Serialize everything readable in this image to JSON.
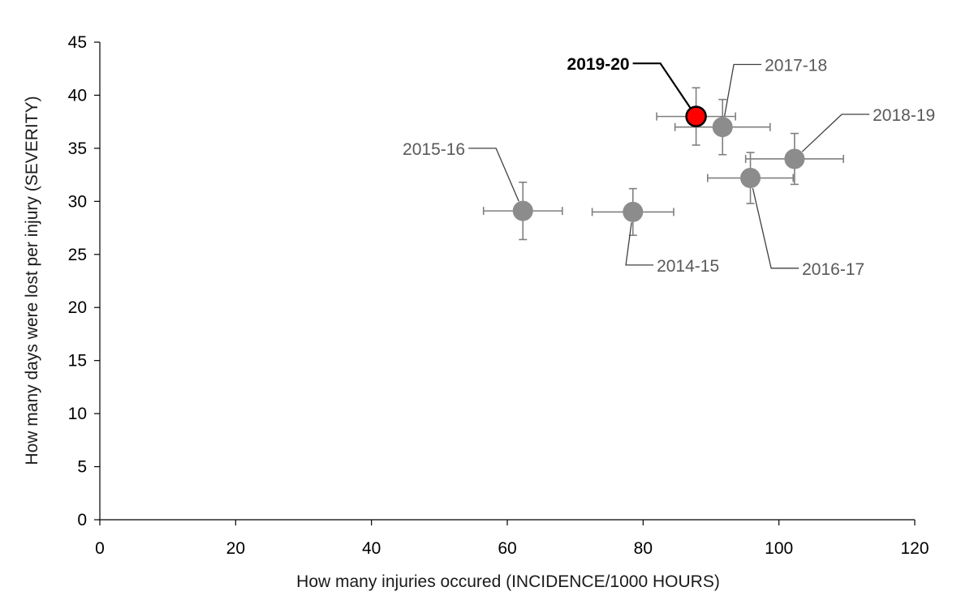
{
  "chart_data": {
    "type": "scatter",
    "title": "",
    "xlabel": "How many injuries occured (INCIDENCE/1000 HOURS)",
    "ylabel": "How many days were lost per injury (SEVERITY)",
    "xlim": [
      0,
      120
    ],
    "ylim": [
      0,
      45
    ],
    "xticks": [
      0,
      20,
      40,
      60,
      80,
      100,
      120
    ],
    "yticks": [
      0,
      5,
      10,
      15,
      20,
      25,
      30,
      35,
      40,
      45
    ],
    "grid": false,
    "colors": {
      "point": "#8c8c8c",
      "highlight": "#ff0000",
      "errorbar": "#7f7f7f",
      "leader": "#404040",
      "axis": "#000000"
    },
    "points": [
      {
        "label": "2014-15",
        "x": 78.5,
        "y": 29.0,
        "x_err": 6.0,
        "y_err": 2.2,
        "highlight": false,
        "label_dx": 3.5,
        "label_dy": -5.0
      },
      {
        "label": "2015-16",
        "x": 62.3,
        "y": 29.1,
        "x_err": 5.8,
        "y_err": 2.7,
        "highlight": false,
        "label_dx": -8.5,
        "label_dy": 5.9
      },
      {
        "label": "2016-17",
        "x": 95.8,
        "y": 32.2,
        "x_err": 6.3,
        "y_err": 2.4,
        "highlight": false,
        "label_dx": 7.6,
        "label_dy": -8.5
      },
      {
        "label": "2017-18",
        "x": 91.7,
        "y": 37.0,
        "x_err": 7.0,
        "y_err": 2.6,
        "highlight": false,
        "label_dx": 6.2,
        "label_dy": 5.9
      },
      {
        "label": "2018-19",
        "x": 102.3,
        "y": 34.0,
        "x_err": 7.2,
        "y_err": 2.4,
        "highlight": false,
        "label_dx": 11.5,
        "label_dy": 4.2
      },
      {
        "label": "2019-20",
        "x": 87.8,
        "y": 38.0,
        "x_err": 5.8,
        "y_err": 2.7,
        "highlight": true,
        "label_dx": -9.8,
        "label_dy": 5.0
      }
    ]
  }
}
